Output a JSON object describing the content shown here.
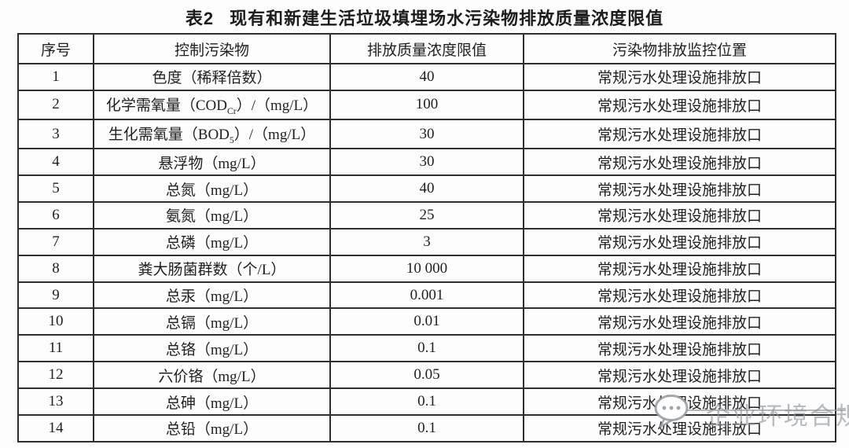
{
  "title": {
    "tag": "表2",
    "text": "现有和新建生活垃圾填埋场水污染物排放质量浓度限值"
  },
  "table": {
    "headers": [
      "序号",
      "控制污染物",
      "排放质量浓度限值",
      "污染物排放监控位置"
    ],
    "rows": [
      {
        "no": "1",
        "pollutant": [
          {
            "t": "色度（稀释倍数）"
          }
        ],
        "limit": "40",
        "location": "常规污水处理设施排放口"
      },
      {
        "no": "2",
        "pollutant": [
          {
            "t": "化学需氧量（COD"
          },
          {
            "t": "Cr",
            "sub": true
          },
          {
            "t": "）/（mg/L）"
          }
        ],
        "limit": "100",
        "location": "常规污水处理设施排放口"
      },
      {
        "no": "3",
        "pollutant": [
          {
            "t": "生化需氧量（BOD"
          },
          {
            "t": "5",
            "sub": true
          },
          {
            "t": "）/（mg/L）"
          }
        ],
        "limit": "30",
        "location": "常规污水处理设施排放口"
      },
      {
        "no": "4",
        "pollutant": [
          {
            "t": "悬浮物（mg/L）"
          }
        ],
        "limit": "30",
        "location": "常规污水处理设施排放口"
      },
      {
        "no": "5",
        "pollutant": [
          {
            "t": "总氮（mg/L）"
          }
        ],
        "limit": "40",
        "location": "常规污水处理设施排放口"
      },
      {
        "no": "6",
        "pollutant": [
          {
            "t": "氨氮（mg/L）"
          }
        ],
        "limit": "25",
        "location": "常规污水处理设施排放口"
      },
      {
        "no": "7",
        "pollutant": [
          {
            "t": "总磷（mg/L）"
          }
        ],
        "limit": "3",
        "location": "常规污水处理设施排放口"
      },
      {
        "no": "8",
        "pollutant": [
          {
            "t": "粪大肠菌群数（个/L）"
          }
        ],
        "limit": "10 000",
        "location": "常规污水处理设施排放口"
      },
      {
        "no": "9",
        "pollutant": [
          {
            "t": "总汞（mg/L）"
          }
        ],
        "limit": "0.001",
        "location": "常规污水处理设施排放口"
      },
      {
        "no": "10",
        "pollutant": [
          {
            "t": "总镉（mg/L）"
          }
        ],
        "limit": "0.01",
        "location": "常规污水处理设施排放口"
      },
      {
        "no": "11",
        "pollutant": [
          {
            "t": "总铬（mg/L）"
          }
        ],
        "limit": "0.1",
        "location": "常规污水处理设施排放口"
      },
      {
        "no": "12",
        "pollutant": [
          {
            "t": "六价铬（mg/L）"
          }
        ],
        "limit": "0.05",
        "location": "常规污水处理设施排放口"
      },
      {
        "no": "13",
        "pollutant": [
          {
            "t": "总砷（mg/L）"
          }
        ],
        "limit": "0.1",
        "location": "常规污水处理设施排放口"
      },
      {
        "no": "14",
        "pollutant": [
          {
            "t": "总铅（mg/L）"
          }
        ],
        "limit": "0.1",
        "location": "常规污水处理设施排放口"
      }
    ]
  },
  "watermark": {
    "text": "企业环境合规",
    "icon": "chat-bubble-icon",
    "color": "#8c9298"
  },
  "colors": {
    "border": "#2f2f2f",
    "text": "#1f1f1f",
    "background": "#fdfdfd",
    "watermark": "#9aa0a6"
  }
}
